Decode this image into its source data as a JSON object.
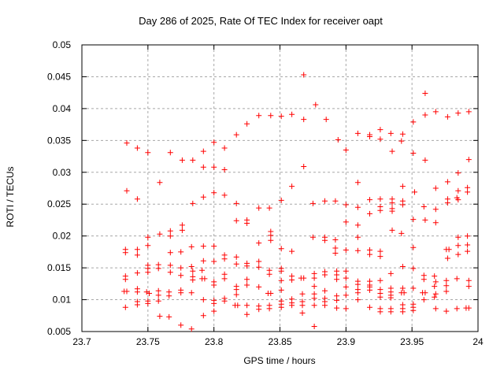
{
  "chart_data": {
    "type": "scatter",
    "title": "Day 286 of 2025, Rate Of TEC Index for receiver oapt",
    "xlabel": "GPS time / hours",
    "ylabel": "ROTI / TECUs",
    "xlim": [
      23.7,
      24
    ],
    "ylim": [
      0.005,
      0.05
    ],
    "xticks": [
      23.7,
      23.75,
      23.8,
      23.85,
      23.9,
      23.95,
      24
    ],
    "xtick_labels": [
      "23.7",
      "23.75",
      "23.8",
      "23.85",
      "23.9",
      "23.95",
      "24"
    ],
    "yticks": [
      0.005,
      0.01,
      0.015,
      0.02,
      0.025,
      0.03,
      0.035,
      0.04,
      0.045,
      0.05
    ],
    "ytick_labels": [
      "0.005",
      "0.01",
      "0.015",
      "0.02",
      "0.025",
      "0.03",
      "0.035",
      "0.04",
      "0.045",
      "0.05"
    ],
    "grid": true,
    "grid_style": "dashed",
    "legend": false,
    "marker": "plus",
    "marker_color": "#ff0000",
    "frame_color": "#000000",
    "grid_color": "#a8a8a8",
    "background_color": "#ffffff",
    "points": [
      [
        23.734,
        0.0346
      ],
      [
        23.742,
        0.0338
      ],
      [
        23.75,
        0.0331
      ],
      [
        23.767,
        0.0331
      ],
      [
        23.776,
        0.0319
      ],
      [
        23.784,
        0.0319
      ],
      [
        23.792,
        0.0333
      ],
      [
        23.792,
        0.0308
      ],
      [
        23.759,
        0.0284
      ],
      [
        23.868,
        0.0453
      ],
      [
        23.877,
        0.0406
      ],
      [
        23.834,
        0.0389
      ],
      [
        23.843,
        0.0389
      ],
      [
        23.851,
        0.0388
      ],
      [
        23.859,
        0.0391
      ],
      [
        23.868,
        0.0383
      ],
      [
        23.885,
        0.0383
      ],
      [
        23.825,
        0.0376
      ],
      [
        23.817,
        0.0359
      ],
      [
        23.8,
        0.0347
      ],
      [
        23.808,
        0.0338
      ],
      [
        23.8,
        0.0308
      ],
      [
        23.808,
        0.0304
      ],
      [
        23.868,
        0.0309
      ],
      [
        23.894,
        0.0351
      ],
      [
        23.859,
        0.0278
      ],
      [
        23.96,
        0.0424
      ],
      [
        23.96,
        0.039
      ],
      [
        23.968,
        0.0395
      ],
      [
        23.977,
        0.0387
      ],
      [
        23.985,
        0.0393
      ],
      [
        23.993,
        0.0395
      ],
      [
        23.951,
        0.0379
      ],
      [
        23.909,
        0.0361
      ],
      [
        23.918,
        0.0359
      ],
      [
        23.918,
        0.0356
      ],
      [
        23.926,
        0.0367
      ],
      [
        23.926,
        0.0352
      ],
      [
        23.934,
        0.0361
      ],
      [
        23.943,
        0.036
      ],
      [
        23.942,
        0.0349
      ],
      [
        23.9,
        0.0335
      ],
      [
        23.935,
        0.0333
      ],
      [
        23.951,
        0.033
      ],
      [
        23.96,
        0.0319
      ],
      [
        23.993,
        0.032
      ],
      [
        23.985,
        0.0299
      ],
      [
        23.909,
        0.0284
      ],
      [
        23.977,
        0.0285
      ],
      [
        23.943,
        0.0278
      ],
      [
        23.992,
        0.0276
      ],
      [
        23.992,
        0.0269
      ],
      [
        23.968,
        0.0275
      ],
      [
        23.734,
        0.0271
      ],
      [
        23.742,
        0.0258
      ],
      [
        23.784,
        0.0251
      ],
      [
        23.792,
        0.0261
      ],
      [
        23.776,
        0.0217
      ],
      [
        23.776,
        0.0209
      ],
      [
        23.759,
        0.0203
      ],
      [
        23.767,
        0.0208
      ],
      [
        23.767,
        0.02
      ],
      [
        23.75,
        0.0198
      ],
      [
        23.75,
        0.0185
      ],
      [
        23.733,
        0.0179
      ],
      [
        23.733,
        0.0174
      ],
      [
        23.742,
        0.0179
      ],
      [
        23.742,
        0.017
      ],
      [
        23.767,
        0.0174
      ],
      [
        23.775,
        0.0175
      ],
      [
        23.783,
        0.0183
      ],
      [
        23.792,
        0.0184
      ],
      [
        23.792,
        0.0161
      ],
      [
        23.791,
        0.0146
      ],
      [
        23.75,
        0.0154
      ],
      [
        23.75,
        0.0149
      ],
      [
        23.75,
        0.0143
      ],
      [
        23.758,
        0.0155
      ],
      [
        23.758,
        0.0149
      ],
      [
        23.767,
        0.0154
      ],
      [
        23.767,
        0.0143
      ],
      [
        23.775,
        0.015
      ],
      [
        23.775,
        0.0138
      ],
      [
        23.783,
        0.0152
      ],
      [
        23.784,
        0.0145
      ],
      [
        23.784,
        0.0136
      ],
      [
        23.784,
        0.0131
      ],
      [
        23.791,
        0.0133
      ],
      [
        23.793,
        0.0133
      ],
      [
        23.742,
        0.0142
      ],
      [
        23.733,
        0.0137
      ],
      [
        23.733,
        0.0132
      ],
      [
        23.742,
        0.0117
      ],
      [
        23.742,
        0.0112
      ],
      [
        23.732,
        0.0113
      ],
      [
        23.734,
        0.0113
      ],
      [
        23.749,
        0.0112
      ],
      [
        23.751,
        0.011
      ],
      [
        23.758,
        0.0114
      ],
      [
        23.758,
        0.0107
      ],
      [
        23.766,
        0.0112
      ],
      [
        23.766,
        0.0106
      ],
      [
        23.775,
        0.0115
      ],
      [
        23.775,
        0.0111
      ],
      [
        23.783,
        0.0111
      ],
      [
        23.742,
        0.0097
      ],
      [
        23.742,
        0.0092
      ],
      [
        23.733,
        0.0088
      ],
      [
        23.75,
        0.0098
      ],
      [
        23.75,
        0.0094
      ],
      [
        23.758,
        0.0098
      ],
      [
        23.792,
        0.01
      ],
      [
        23.759,
        0.0074
      ],
      [
        23.766,
        0.0073
      ],
      [
        23.775,
        0.006
      ],
      [
        23.783,
        0.0054
      ],
      [
        23.792,
        0.0075
      ],
      [
        23.8,
        0.0268
      ],
      [
        23.808,
        0.0264
      ],
      [
        23.817,
        0.0251
      ],
      [
        23.851,
        0.0256
      ],
      [
        23.834,
        0.0244
      ],
      [
        23.842,
        0.0244
      ],
      [
        23.875,
        0.0251
      ],
      [
        23.884,
        0.0255
      ],
      [
        23.892,
        0.0255
      ],
      [
        23.817,
        0.0224
      ],
      [
        23.825,
        0.0225
      ],
      [
        23.825,
        0.022
      ],
      [
        23.843,
        0.0207
      ],
      [
        23.843,
        0.0201
      ],
      [
        23.843,
        0.0193
      ],
      [
        23.834,
        0.0189
      ],
      [
        23.875,
        0.0198
      ],
      [
        23.884,
        0.0198
      ],
      [
        23.884,
        0.0193
      ],
      [
        23.892,
        0.0194
      ],
      [
        23.851,
        0.018
      ],
      [
        23.859,
        0.0176
      ],
      [
        23.892,
        0.0181
      ],
      [
        23.892,
        0.0173
      ],
      [
        23.8,
        0.0184
      ],
      [
        23.808,
        0.017
      ],
      [
        23.808,
        0.0164
      ],
      [
        23.8,
        0.016
      ],
      [
        23.817,
        0.0167
      ],
      [
        23.817,
        0.0156
      ],
      [
        23.825,
        0.0157
      ],
      [
        23.825,
        0.0153
      ],
      [
        23.834,
        0.016
      ],
      [
        23.834,
        0.0151
      ],
      [
        23.842,
        0.0146
      ],
      [
        23.842,
        0.014
      ],
      [
        23.851,
        0.0149
      ],
      [
        23.851,
        0.0145
      ],
      [
        23.859,
        0.0137
      ],
      [
        23.859,
        0.0131
      ],
      [
        23.866,
        0.0134
      ],
      [
        23.868,
        0.0134
      ],
      [
        23.876,
        0.0141
      ],
      [
        23.876,
        0.0134
      ],
      [
        23.876,
        0.0121
      ],
      [
        23.884,
        0.0144
      ],
      [
        23.884,
        0.0139
      ],
      [
        23.893,
        0.0145
      ],
      [
        23.893,
        0.0139
      ],
      [
        23.893,
        0.0132
      ],
      [
        23.808,
        0.014
      ],
      [
        23.808,
        0.0133
      ],
      [
        23.825,
        0.0132
      ],
      [
        23.825,
        0.0123
      ],
      [
        23.817,
        0.0121
      ],
      [
        23.817,
        0.0116
      ],
      [
        23.817,
        0.0108
      ],
      [
        23.834,
        0.012
      ],
      [
        23.851,
        0.013
      ],
      [
        23.851,
        0.0115
      ],
      [
        23.841,
        0.011
      ],
      [
        23.843,
        0.011
      ],
      [
        23.8,
        0.0128
      ],
      [
        23.8,
        0.0123
      ],
      [
        23.867,
        0.0109
      ],
      [
        23.876,
        0.0109
      ],
      [
        23.884,
        0.0114
      ],
      [
        23.893,
        0.0106
      ],
      [
        23.808,
        0.0102
      ],
      [
        23.808,
        0.0098
      ],
      [
        23.816,
        0.0091
      ],
      [
        23.818,
        0.0091
      ],
      [
        23.825,
        0.0091
      ],
      [
        23.825,
        0.0077
      ],
      [
        23.834,
        0.009
      ],
      [
        23.834,
        0.0085
      ],
      [
        23.842,
        0.0091
      ],
      [
        23.842,
        0.0086
      ],
      [
        23.851,
        0.0098
      ],
      [
        23.851,
        0.0093
      ],
      [
        23.851,
        0.0088
      ],
      [
        23.859,
        0.0101
      ],
      [
        23.859,
        0.0095
      ],
      [
        23.859,
        0.0091
      ],
      [
        23.867,
        0.0097
      ],
      [
        23.867,
        0.0091
      ],
      [
        23.867,
        0.0079
      ],
      [
        23.876,
        0.0102
      ],
      [
        23.876,
        0.0091
      ],
      [
        23.884,
        0.0102
      ],
      [
        23.884,
        0.0097
      ],
      [
        23.884,
        0.0091
      ],
      [
        23.893,
        0.0099
      ],
      [
        23.893,
        0.0087
      ],
      [
        23.876,
        0.0058
      ],
      [
        23.8,
        0.0099
      ],
      [
        23.8,
        0.0094
      ],
      [
        23.8,
        0.0082
      ],
      [
        23.952,
        0.0269
      ],
      [
        23.985,
        0.0271
      ],
      [
        23.918,
        0.0257
      ],
      [
        23.926,
        0.0258
      ],
      [
        23.935,
        0.0258
      ],
      [
        23.935,
        0.0252
      ],
      [
        23.943,
        0.0255
      ],
      [
        23.943,
        0.0249
      ],
      [
        23.977,
        0.0258
      ],
      [
        23.977,
        0.0252
      ],
      [
        23.984,
        0.026
      ],
      [
        23.985,
        0.0257
      ],
      [
        23.9,
        0.0249
      ],
      [
        23.909,
        0.0245
      ],
      [
        23.926,
        0.0246
      ],
      [
        23.935,
        0.0243
      ],
      [
        23.935,
        0.0239
      ],
      [
        23.918,
        0.0235
      ],
      [
        23.926,
        0.024
      ],
      [
        23.959,
        0.0246
      ],
      [
        23.968,
        0.0242
      ],
      [
        23.9,
        0.0222
      ],
      [
        23.909,
        0.0217
      ],
      [
        23.951,
        0.0226
      ],
      [
        23.96,
        0.0225
      ],
      [
        23.968,
        0.0221
      ],
      [
        23.935,
        0.0209
      ],
      [
        23.942,
        0.0204
      ],
      [
        23.909,
        0.0198
      ],
      [
        23.985,
        0.0198
      ],
      [
        23.992,
        0.02
      ],
      [
        23.992,
        0.0186
      ],
      [
        23.985,
        0.0185
      ],
      [
        23.951,
        0.0182
      ],
      [
        23.976,
        0.0179
      ],
      [
        23.978,
        0.0179
      ],
      [
        23.9,
        0.0178
      ],
      [
        23.909,
        0.0177
      ],
      [
        23.918,
        0.0178
      ],
      [
        23.918,
        0.0171
      ],
      [
        23.926,
        0.0176
      ],
      [
        23.926,
        0.0168
      ],
      [
        23.992,
        0.0176
      ],
      [
        23.977,
        0.0165
      ],
      [
        23.985,
        0.0171
      ],
      [
        23.943,
        0.0152
      ],
      [
        23.951,
        0.0149
      ],
      [
        23.9,
        0.0145
      ],
      [
        23.934,
        0.0141
      ],
      [
        23.959,
        0.0138
      ],
      [
        23.959,
        0.0132
      ],
      [
        23.967,
        0.0137
      ],
      [
        23.968,
        0.0128
      ],
      [
        23.909,
        0.0129
      ],
      [
        23.909,
        0.0124
      ],
      [
        23.918,
        0.0129
      ],
      [
        23.918,
        0.0123
      ],
      [
        23.926,
        0.013
      ],
      [
        23.976,
        0.013
      ],
      [
        23.984,
        0.0133
      ],
      [
        23.993,
        0.013
      ],
      [
        23.9,
        0.0134
      ],
      [
        23.9,
        0.012
      ],
      [
        23.909,
        0.0116
      ],
      [
        23.909,
        0.0111
      ],
      [
        23.918,
        0.012
      ],
      [
        23.918,
        0.0115
      ],
      [
        23.926,
        0.0116
      ],
      [
        23.926,
        0.011
      ],
      [
        23.926,
        0.0104
      ],
      [
        23.934,
        0.0118
      ],
      [
        23.934,
        0.0112
      ],
      [
        23.934,
        0.0107
      ],
      [
        23.934,
        0.0103
      ],
      [
        23.943,
        0.0118
      ],
      [
        23.942,
        0.0111
      ],
      [
        23.944,
        0.0111
      ],
      [
        23.951,
        0.0118
      ],
      [
        23.951,
        0.0093
      ],
      [
        23.951,
        0.0088
      ],
      [
        23.951,
        0.0083
      ],
      [
        23.958,
        0.0111
      ],
      [
        23.96,
        0.0111
      ],
      [
        23.959,
        0.01
      ],
      [
        23.967,
        0.0121
      ],
      [
        23.976,
        0.0122
      ],
      [
        23.993,
        0.0121
      ],
      [
        23.968,
        0.0109
      ],
      [
        23.967,
        0.0104
      ],
      [
        23.976,
        0.0113
      ],
      [
        23.9,
        0.0107
      ],
      [
        23.909,
        0.01
      ],
      [
        23.918,
        0.0088
      ],
      [
        23.926,
        0.0086
      ],
      [
        23.926,
        0.0081
      ],
      [
        23.934,
        0.0086
      ],
      [
        23.934,
        0.0081
      ],
      [
        23.943,
        0.0092
      ],
      [
        23.943,
        0.0086
      ],
      [
        23.943,
        0.0081
      ],
      [
        23.968,
        0.0086
      ],
      [
        23.976,
        0.0082
      ],
      [
        23.984,
        0.0086
      ],
      [
        23.991,
        0.0087
      ],
      [
        23.993,
        0.0087
      ],
      [
        23.9,
        0.0086
      ]
    ]
  }
}
